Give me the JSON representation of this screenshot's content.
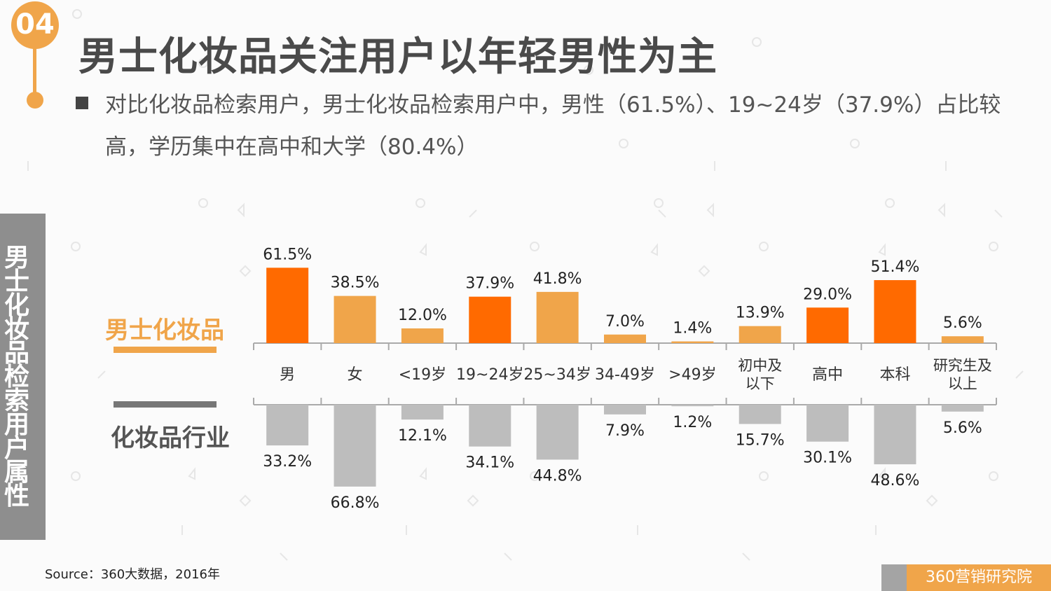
{
  "header": {
    "section_number": "04",
    "title": "男士化妆品关注用户以年轻男性为主",
    "subtitle": "对比化妆品检索用户，男士化妆品检索用户中，男性（61.5%）、19~24岁（37.9%）占比较高，学历集中在高中和大学（80.4%）"
  },
  "side_label": "男士化妆品检索用户属性",
  "legend": {
    "top": "男士化妆品",
    "bottom": "化妆品行业"
  },
  "colors": {
    "highlight": "#ff6a00",
    "accent": "#f0a54a",
    "industry": "#bdbdbd",
    "side_panel": "#8e8e8e"
  },
  "chart_data": {
    "type": "bar",
    "categories": [
      "男",
      "女",
      "<19岁",
      "19~24岁",
      "25~34岁",
      "34-49岁",
      ">49岁",
      "初中及以下",
      "高中",
      "本科",
      "研究生及以上"
    ],
    "category_lines": [
      [
        "男"
      ],
      [
        "女"
      ],
      [
        "<19岁"
      ],
      [
        "19~24岁"
      ],
      [
        "25~34岁"
      ],
      [
        "34-49岁"
      ],
      [
        ">49岁"
      ],
      [
        "初中及",
        "以下"
      ],
      [
        "高中"
      ],
      [
        "本科"
      ],
      [
        "研究生及",
        "以上"
      ]
    ],
    "series": [
      {
        "name": "男士化妆品",
        "values": [
          61.5,
          38.5,
          12.0,
          37.9,
          41.8,
          7.0,
          1.4,
          13.9,
          29.0,
          51.4,
          5.6
        ],
        "labels": [
          "61.5%",
          "38.5%",
          "12.0%",
          "37.9%",
          "41.8%",
          "7.0%",
          "1.4%",
          "13.9%",
          "29.0%",
          "51.4%",
          "5.6%"
        ],
        "highlighted": [
          true,
          false,
          false,
          true,
          false,
          false,
          false,
          false,
          true,
          true,
          false
        ]
      },
      {
        "name": "化妆品行业",
        "values": [
          33.2,
          66.8,
          12.1,
          34.1,
          44.8,
          7.9,
          1.2,
          15.7,
          30.1,
          48.6,
          5.6
        ],
        "labels": [
          "33.2%",
          "66.8%",
          "12.1%",
          "34.1%",
          "44.8%",
          "7.9%",
          "1.2%",
          "15.7%",
          "30.1%",
          "48.6%",
          "5.6%"
        ]
      }
    ],
    "ylim": [
      0,
      70
    ]
  },
  "footer": {
    "source": "Source：360大数据，2016年",
    "brand": "360营销研究院"
  }
}
